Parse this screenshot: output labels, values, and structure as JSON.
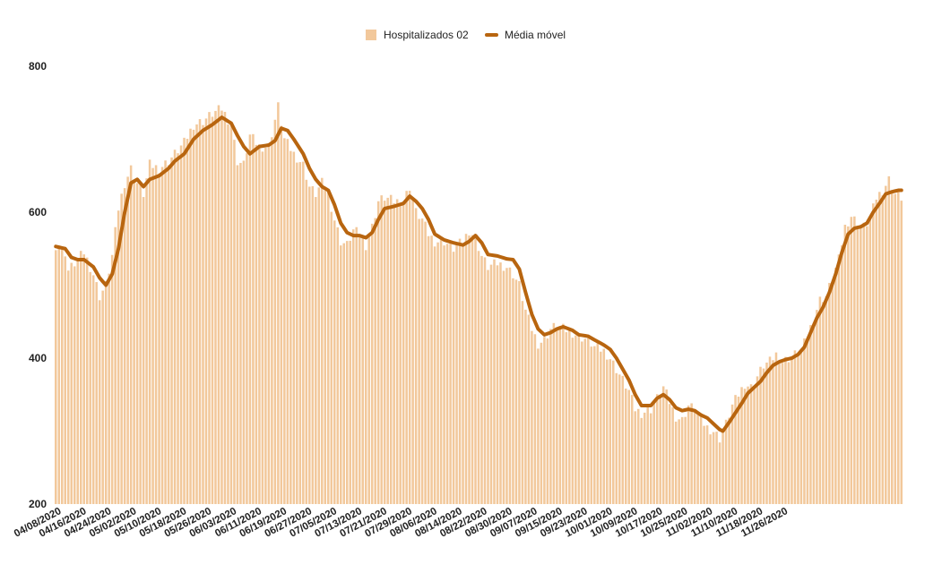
{
  "chart_data": {
    "type": "bar",
    "ylim": [
      200,
      800
    ],
    "yticks": [
      200,
      400,
      600,
      800
    ],
    "grid": false,
    "legend_position": "top-center",
    "x_tick_labels": [
      "04/08/2020",
      "04/16/2020",
      "04/24/2020",
      "05/02/2020",
      "05/10/2020",
      "05/18/2020",
      "05/26/2020",
      "06/03/2020",
      "06/11/2020",
      "06/19/2020",
      "06/27/2020",
      "07/05/2020",
      "07/13/2020",
      "07/21/2020",
      "07/29/2020",
      "08/06/2020",
      "08/14/2020",
      "08/22/2020",
      "08/30/2020",
      "09/07/2020",
      "09/15/2020",
      "09/23/2020",
      "10/01/2020",
      "10/09/2020",
      "10/17/2020",
      "10/25/2020",
      "11/02/2020",
      "11/10/2020",
      "11/18/2020",
      "11/26/2020"
    ],
    "x_tick_display": [
      "04/08/2020",
      "04/16/2020",
      "04/24/2020",
      "05/02/2020",
      "05/10/2020",
      "05/18/2020",
      "05/26/2020",
      "06/03/2020",
      "06/11/2020",
      "06/19/2020",
      "06/27/2020",
      "07/05/2020",
      "07/13/2020",
      "07/21/2020",
      "07/29/2020",
      "08/06/2020",
      "08/14/2020",
      "08/22/2020",
      "08/30/2020",
      "09/07/2020",
      "09/15/2020",
      "09/23/2020",
      "10/01/2020",
      "10/09/2020",
      "10/17/2020",
      "10/25/2020",
      "11/02/2020",
      "11/10/2020",
      "11/18/2020",
      "11/26/2020"
    ],
    "series": [
      {
        "name": "Hospitalizados 02",
        "color": "#f2c89b",
        "kind": "bar",
        "anchors": [
          [
            0,
            555
          ],
          [
            3,
            545
          ],
          [
            4,
            520
          ],
          [
            7,
            535
          ],
          [
            9,
            545
          ],
          [
            12,
            515
          ],
          [
            14,
            485
          ],
          [
            16,
            500
          ],
          [
            18,
            540
          ],
          [
            20,
            605
          ],
          [
            22,
            640
          ],
          [
            24,
            660
          ],
          [
            26,
            640
          ],
          [
            28,
            625
          ],
          [
            30,
            665
          ],
          [
            33,
            660
          ],
          [
            36,
            670
          ],
          [
            38,
            680
          ],
          [
            41,
            695
          ],
          [
            44,
            720
          ],
          [
            47,
            725
          ],
          [
            50,
            735
          ],
          [
            53,
            742
          ],
          [
            56,
            720
          ],
          [
            58,
            670
          ],
          [
            60,
            665
          ],
          [
            62,
            705
          ],
          [
            65,
            690
          ],
          [
            68,
            690
          ],
          [
            71,
            745
          ],
          [
            73,
            700
          ],
          [
            76,
            680
          ],
          [
            79,
            665
          ],
          [
            81,
            635
          ],
          [
            83,
            625
          ],
          [
            85,
            640
          ],
          [
            87,
            625
          ],
          [
            89,
            590
          ],
          [
            91,
            560
          ],
          [
            93,
            555
          ],
          [
            95,
            575
          ],
          [
            97,
            570
          ],
          [
            99,
            555
          ],
          [
            101,
            580
          ],
          [
            103,
            615
          ],
          [
            105,
            620
          ],
          [
            108,
            615
          ],
          [
            111,
            615
          ],
          [
            113,
            635
          ],
          [
            115,
            600
          ],
          [
            117,
            590
          ],
          [
            119,
            570
          ],
          [
            121,
            560
          ],
          [
            124,
            560
          ],
          [
            127,
            550
          ],
          [
            130,
            560
          ],
          [
            132,
            575
          ],
          [
            134,
            565
          ],
          [
            136,
            540
          ],
          [
            138,
            525
          ],
          [
            141,
            530
          ],
          [
            144,
            525
          ],
          [
            146,
            515
          ],
          [
            148,
            500
          ],
          [
            150,
            465
          ],
          [
            152,
            440
          ],
          [
            154,
            420
          ],
          [
            156,
            425
          ],
          [
            158,
            440
          ],
          [
            160,
            445
          ],
          [
            162,
            440
          ],
          [
            165,
            435
          ],
          [
            167,
            430
          ],
          [
            170,
            425
          ],
          [
            172,
            415
          ],
          [
            175,
            410
          ],
          [
            177,
            400
          ],
          [
            179,
            385
          ],
          [
            181,
            370
          ],
          [
            183,
            355
          ],
          [
            185,
            330
          ],
          [
            187,
            325
          ],
          [
            190,
            330
          ],
          [
            192,
            345
          ],
          [
            194,
            360
          ],
          [
            196,
            340
          ],
          [
            198,
            320
          ],
          [
            200,
            315
          ],
          [
            202,
            335
          ],
          [
            204,
            330
          ],
          [
            206,
            315
          ],
          [
            208,
            305
          ],
          [
            210,
            300
          ],
          [
            212,
            290
          ],
          [
            214,
            310
          ],
          [
            216,
            335
          ],
          [
            218,
            350
          ],
          [
            220,
            365
          ],
          [
            222,
            360
          ],
          [
            224,
            375
          ],
          [
            226,
            390
          ],
          [
            228,
            395
          ],
          [
            230,
            405
          ],
          [
            232,
            395
          ],
          [
            234,
            400
          ],
          [
            236,
            405
          ],
          [
            238,
            410
          ],
          [
            240,
            430
          ],
          [
            242,
            455
          ],
          [
            244,
            480
          ],
          [
            246,
            485
          ],
          [
            248,
            510
          ],
          [
            250,
            535
          ],
          [
            252,
            580
          ],
          [
            254,
            595
          ],
          [
            256,
            585
          ],
          [
            258,
            580
          ],
          [
            260,
            590
          ],
          [
            262,
            620
          ],
          [
            264,
            630
          ],
          [
            266,
            645
          ],
          [
            268,
            625
          ],
          [
            270,
            620
          ]
        ]
      },
      {
        "name": "Média móvel",
        "color": "#b8650f",
        "kind": "line",
        "anchors": [
          [
            0,
            553
          ],
          [
            3,
            550
          ],
          [
            5,
            538
          ],
          [
            7,
            535
          ],
          [
            9,
            535
          ],
          [
            12,
            525
          ],
          [
            14,
            510
          ],
          [
            16,
            500
          ],
          [
            18,
            515
          ],
          [
            20,
            550
          ],
          [
            22,
            600
          ],
          [
            24,
            640
          ],
          [
            26,
            645
          ],
          [
            28,
            635
          ],
          [
            30,
            645
          ],
          [
            33,
            650
          ],
          [
            36,
            660
          ],
          [
            38,
            670
          ],
          [
            41,
            680
          ],
          [
            44,
            700
          ],
          [
            47,
            712
          ],
          [
            50,
            720
          ],
          [
            53,
            730
          ],
          [
            56,
            722
          ],
          [
            58,
            705
          ],
          [
            60,
            690
          ],
          [
            62,
            680
          ],
          [
            65,
            690
          ],
          [
            68,
            692
          ],
          [
            70,
            698
          ],
          [
            72,
            715
          ],
          [
            74,
            712
          ],
          [
            76,
            700
          ],
          [
            79,
            680
          ],
          [
            81,
            660
          ],
          [
            83,
            645
          ],
          [
            85,
            635
          ],
          [
            87,
            630
          ],
          [
            89,
            610
          ],
          [
            91,
            585
          ],
          [
            93,
            572
          ],
          [
            95,
            568
          ],
          [
            97,
            568
          ],
          [
            99,
            565
          ],
          [
            101,
            572
          ],
          [
            103,
            590
          ],
          [
            105,
            605
          ],
          [
            108,
            608
          ],
          [
            111,
            612
          ],
          [
            113,
            622
          ],
          [
            115,
            615
          ],
          [
            117,
            605
          ],
          [
            119,
            590
          ],
          [
            121,
            570
          ],
          [
            124,
            562
          ],
          [
            127,
            558
          ],
          [
            130,
            555
          ],
          [
            132,
            560
          ],
          [
            134,
            568
          ],
          [
            136,
            558
          ],
          [
            138,
            542
          ],
          [
            141,
            540
          ],
          [
            144,
            536
          ],
          [
            146,
            535
          ],
          [
            148,
            522
          ],
          [
            150,
            490
          ],
          [
            152,
            460
          ],
          [
            154,
            440
          ],
          [
            156,
            432
          ],
          [
            158,
            435
          ],
          [
            160,
            440
          ],
          [
            162,
            443
          ],
          [
            165,
            438
          ],
          [
            167,
            432
          ],
          [
            170,
            430
          ],
          [
            172,
            425
          ],
          [
            175,
            418
          ],
          [
            177,
            412
          ],
          [
            179,
            400
          ],
          [
            181,
            385
          ],
          [
            183,
            370
          ],
          [
            185,
            350
          ],
          [
            187,
            335
          ],
          [
            190,
            335
          ],
          [
            192,
            345
          ],
          [
            194,
            350
          ],
          [
            196,
            343
          ],
          [
            198,
            332
          ],
          [
            200,
            328
          ],
          [
            202,
            330
          ],
          [
            204,
            328
          ],
          [
            206,
            322
          ],
          [
            208,
            318
          ],
          [
            210,
            310
          ],
          [
            212,
            302
          ],
          [
            213,
            300
          ],
          [
            215,
            312
          ],
          [
            217,
            325
          ],
          [
            219,
            338
          ],
          [
            221,
            352
          ],
          [
            223,
            360
          ],
          [
            225,
            368
          ],
          [
            227,
            380
          ],
          [
            229,
            390
          ],
          [
            231,
            395
          ],
          [
            233,
            398
          ],
          [
            235,
            400
          ],
          [
            237,
            405
          ],
          [
            239,
            415
          ],
          [
            241,
            435
          ],
          [
            243,
            455
          ],
          [
            245,
            470
          ],
          [
            247,
            490
          ],
          [
            249,
            515
          ],
          [
            251,
            545
          ],
          [
            253,
            570
          ],
          [
            255,
            578
          ],
          [
            257,
            580
          ],
          [
            259,
            585
          ],
          [
            261,
            600
          ],
          [
            263,
            612
          ],
          [
            265,
            625
          ],
          [
            267,
            628
          ],
          [
            269,
            630
          ]
        ]
      }
    ]
  }
}
